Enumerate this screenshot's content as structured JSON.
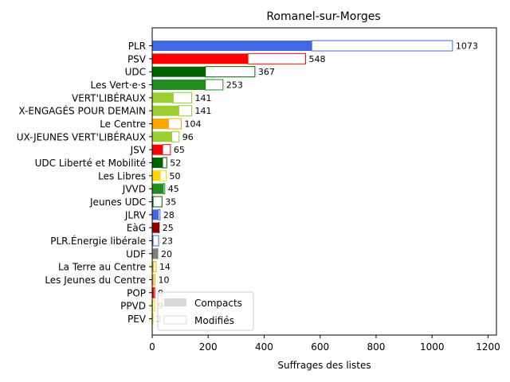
{
  "chart_data": {
    "type": "bar",
    "orientation": "horizontal",
    "stacked": true,
    "title": "Romanel-sur-Morges",
    "xlabel": "Suffrages des listes",
    "ylabel": "",
    "xlim": [
      0,
      1230
    ],
    "xticks": [
      "0",
      "200",
      "400",
      "600",
      "800",
      "1000",
      "1200"
    ],
    "xtick_values": [
      0,
      200,
      400,
      600,
      800,
      1000,
      1200
    ],
    "legend": {
      "placement": "lower-left",
      "entries": [
        "Compacts",
        "Modifiés"
      ]
    },
    "categories": [
      "PLR",
      "PSV",
      "UDC",
      "Les Vert·e·s",
      "VERT'LIBÉRAUX",
      "X-ENGAGÉS POUR DEMAIN",
      "Le Centre",
      "UX-JEUNES VERT'LIBÉRAUX",
      "JSV",
      "UDC Liberté et Mobilité",
      "Les Libres",
      "JVVD",
      "Jeunes UDC",
      "JLRV",
      "EàG",
      "PLR.Énergie libérale",
      "UDF",
      "La Terre au Centre",
      "Les Jeunes du Centre",
      "POP",
      "PPVD",
      "PEV"
    ],
    "compacts": [
      570,
      342,
      190,
      190,
      75,
      95,
      58,
      70,
      37,
      37,
      28,
      40,
      3,
      22,
      24,
      3,
      18,
      4,
      4,
      5,
      2,
      2
    ],
    "totals": [
      1073,
      548,
      367,
      253,
      141,
      141,
      104,
      96,
      65,
      52,
      50,
      45,
      35,
      28,
      25,
      23,
      20,
      14,
      10,
      9,
      9,
      3
    ],
    "total_labels": [
      "1073",
      "548",
      "367",
      "253",
      "141",
      "141",
      "104",
      "96",
      "65",
      "52",
      "50",
      "45",
      "35",
      "28",
      "25",
      "23",
      "20",
      "14",
      "10",
      "9",
      "9",
      "3"
    ],
    "colors": [
      "#4169e1",
      "#ff0000",
      "#006400",
      "#228b22",
      "#9acd32",
      "#9acd32",
      "#ffa500",
      "#9acd32",
      "#ff0000",
      "#006400",
      "#ffd700",
      "#228b22",
      "#006400",
      "#4169e1",
      "#8b0000",
      "#4169e1",
      "#808080",
      "#ffa500",
      "#ffa500",
      "#ff0000",
      "#ffd700",
      "#ffd700"
    ]
  }
}
